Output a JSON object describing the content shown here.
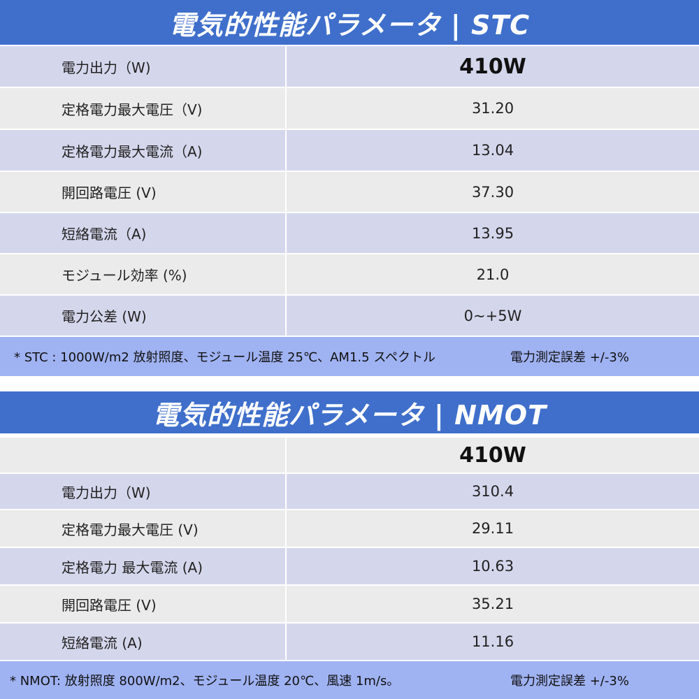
{
  "stc": {
    "title": "電気的性能パラメータ | STC",
    "rows": [
      {
        "label": "電力出力（W)",
        "value": "410W"
      },
      {
        "label": "定格電力最大電圧（V)",
        "value": "31.20"
      },
      {
        "label": "定格電力最大電流（A)",
        "value": "13.04"
      },
      {
        "label": "開回路電圧 (V)",
        "value": "37.30"
      },
      {
        "label": "短絡電流（A)",
        "value": "13.95"
      },
      {
        "label": "モジュール効率 (%)",
        "value": "21.0"
      },
      {
        "label": "電力公差 (W)",
        "value": "0~+5W"
      }
    ],
    "note": "* STC : 1000W/m2 放射照度、モジュール温度 25℃、AM1.5 スペクトル",
    "note_right": "電力測定誤差 +/-3%"
  },
  "nmot": {
    "title": "電気的性能パラメータ |  NMOT",
    "header_value": "410W",
    "rows": [
      {
        "label": "電力出力（W)",
        "value": "310.4"
      },
      {
        "label": "定格電力最大電圧 (V)",
        "value": "29.11"
      },
      {
        "label": "定格電力 最大電流 (A)",
        "value": "10.63"
      },
      {
        "label": "開回路電圧 (V)",
        "value": "35.21"
      },
      {
        "label": "短絡電流 (A)",
        "value": "11.16"
      }
    ],
    "note": "* NMOT: 放射照度 800W/m2、モジュール温度 20℃、風速 1m/s。",
    "note_right": "電力測定誤差 +/-3%"
  }
}
